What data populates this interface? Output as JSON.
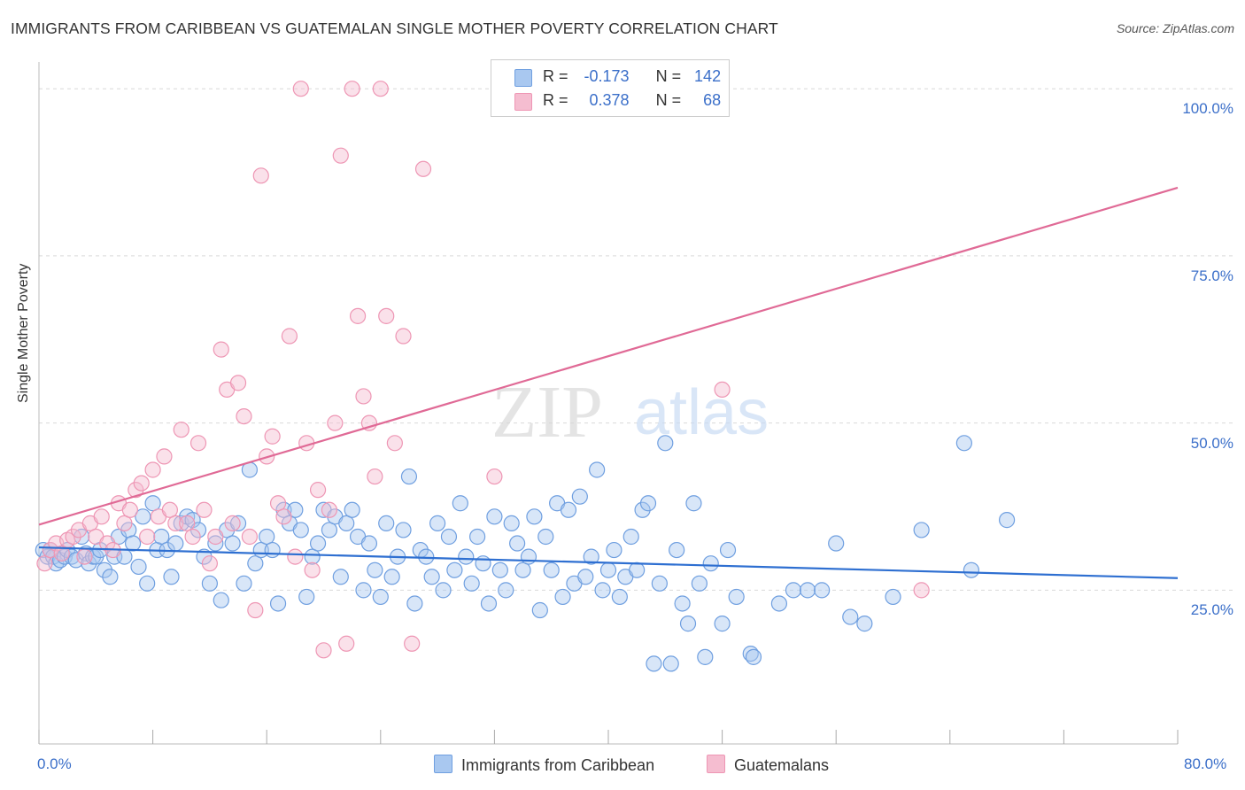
{
  "title": "IMMIGRANTS FROM CARIBBEAN VS GUATEMALAN SINGLE MOTHER POVERTY CORRELATION CHART",
  "source": "Source: ZipAtlas.com",
  "watermark": {
    "zip": "ZIP",
    "atlas": "atlas"
  },
  "legend": {
    "r_label": "R =",
    "n_label": "N =",
    "rows": [
      {
        "r": "-0.173",
        "n": "142"
      },
      {
        "r": "0.378",
        "n": "68"
      }
    ]
  },
  "colors": {
    "blue_fill": "#a9c8f0",
    "blue_stroke": "#6f9fe0",
    "blue_line": "#2e6fd1",
    "pink_fill": "#f5bdd0",
    "pink_stroke": "#ee96b4",
    "pink_line": "#e06a96",
    "tick_text": "#3b6fc9",
    "grid": "#d9d9d9"
  },
  "chart_data": {
    "type": "scatter",
    "ylabel": "Single Mother Poverty",
    "xlim": [
      0,
      80
    ],
    "ylim": [
      2,
      104
    ],
    "x_tick_labels": [
      "0.0%",
      "80.0%"
    ],
    "y_ticks": [
      {
        "value": 25,
        "label": "25.0%"
      },
      {
        "value": 50,
        "label": "50.0%"
      },
      {
        "value": 75,
        "label": "75.0%"
      },
      {
        "value": 100,
        "label": "100.0%"
      }
    ],
    "grid": "horizontal dashed",
    "series": [
      {
        "name": "Immigrants from Caribbean",
        "color": "blue",
        "trend": {
          "x0": 0,
          "y0": 31.4,
          "x1": 80,
          "y1": 26.8
        },
        "points": [
          [
            0.3,
            31
          ],
          [
            0.6,
            30
          ],
          [
            0.8,
            31
          ],
          [
            1,
            30
          ],
          [
            1.2,
            29
          ],
          [
            1.5,
            29.5
          ],
          [
            1.8,
            30
          ],
          [
            2,
            31
          ],
          [
            2.3,
            30
          ],
          [
            2.6,
            29.5
          ],
          [
            3,
            33
          ],
          [
            3.3,
            30.5
          ],
          [
            3.5,
            29
          ],
          [
            3.8,
            30
          ],
          [
            4,
            30
          ],
          [
            4.3,
            31
          ],
          [
            4.6,
            28
          ],
          [
            5,
            27
          ],
          [
            5.3,
            30
          ],
          [
            5.6,
            33
          ],
          [
            6,
            30
          ],
          [
            6.3,
            34
          ],
          [
            6.6,
            32
          ],
          [
            7,
            28.5
          ],
          [
            7.3,
            36
          ],
          [
            7.6,
            26
          ],
          [
            8,
            38
          ],
          [
            8.3,
            31
          ],
          [
            8.6,
            33
          ],
          [
            9,
            31
          ],
          [
            9.3,
            27
          ],
          [
            9.6,
            32
          ],
          [
            10,
            35
          ],
          [
            10.4,
            36
          ],
          [
            10.8,
            35.5
          ],
          [
            11.2,
            34
          ],
          [
            11.6,
            30
          ],
          [
            12,
            26
          ],
          [
            12.4,
            32
          ],
          [
            12.8,
            23.5
          ],
          [
            13.2,
            34
          ],
          [
            13.6,
            32
          ],
          [
            14,
            35
          ],
          [
            14.4,
            26
          ],
          [
            14.8,
            43
          ],
          [
            15.2,
            29
          ],
          [
            15.6,
            31
          ],
          [
            16,
            33
          ],
          [
            16.4,
            31
          ],
          [
            16.8,
            23
          ],
          [
            17.2,
            37
          ],
          [
            17.6,
            35
          ],
          [
            18,
            37
          ],
          [
            18.4,
            34
          ],
          [
            18.8,
            24
          ],
          [
            19.2,
            30
          ],
          [
            19.6,
            32
          ],
          [
            20,
            37
          ],
          [
            20.4,
            34
          ],
          [
            20.8,
            36
          ],
          [
            21.2,
            27
          ],
          [
            21.6,
            35
          ],
          [
            22,
            37
          ],
          [
            22.4,
            33
          ],
          [
            22.8,
            25
          ],
          [
            23.2,
            32
          ],
          [
            23.6,
            28
          ],
          [
            24,
            24
          ],
          [
            24.4,
            35
          ],
          [
            24.8,
            27
          ],
          [
            25.2,
            30
          ],
          [
            25.6,
            34
          ],
          [
            26,
            42
          ],
          [
            26.4,
            23
          ],
          [
            26.8,
            31
          ],
          [
            27.2,
            30
          ],
          [
            27.6,
            27
          ],
          [
            28,
            35
          ],
          [
            28.4,
            25
          ],
          [
            28.8,
            33
          ],
          [
            29.2,
            28
          ],
          [
            29.6,
            38
          ],
          [
            30,
            30
          ],
          [
            30.4,
            26
          ],
          [
            30.8,
            33
          ],
          [
            31.2,
            29
          ],
          [
            31.6,
            23
          ],
          [
            32,
            36
          ],
          [
            32.4,
            28
          ],
          [
            32.8,
            25
          ],
          [
            33.2,
            35
          ],
          [
            33.6,
            32
          ],
          [
            34,
            28
          ],
          [
            34.4,
            30
          ],
          [
            34.8,
            36
          ],
          [
            35.2,
            22
          ],
          [
            35.6,
            33
          ],
          [
            36,
            28
          ],
          [
            36.4,
            38
          ],
          [
            36.8,
            24
          ],
          [
            37.2,
            37
          ],
          [
            37.6,
            26
          ],
          [
            38,
            39
          ],
          [
            38.4,
            27
          ],
          [
            38.8,
            30
          ],
          [
            39.2,
            43
          ],
          [
            39.6,
            25
          ],
          [
            40,
            28
          ],
          [
            40.4,
            31
          ],
          [
            40.8,
            24
          ],
          [
            41.2,
            27
          ],
          [
            41.6,
            33
          ],
          [
            42,
            28
          ],
          [
            42.4,
            37
          ],
          [
            42.8,
            38
          ],
          [
            43.2,
            14
          ],
          [
            43.6,
            26
          ],
          [
            44,
            47
          ],
          [
            44.4,
            14
          ],
          [
            44.8,
            31
          ],
          [
            45.2,
            23
          ],
          [
            45.6,
            20
          ],
          [
            46,
            38
          ],
          [
            46.4,
            26
          ],
          [
            46.8,
            15
          ],
          [
            47.2,
            29
          ],
          [
            48,
            20
          ],
          [
            48.4,
            31
          ],
          [
            49,
            24
          ],
          [
            50,
            15.5
          ],
          [
            50.2,
            15
          ],
          [
            52,
            23
          ],
          [
            53,
            25
          ],
          [
            54,
            25
          ],
          [
            55,
            25
          ],
          [
            56,
            32
          ],
          [
            57,
            21
          ],
          [
            58,
            20
          ],
          [
            60,
            24
          ],
          [
            62,
            34
          ],
          [
            65,
            47
          ],
          [
            65.5,
            28
          ],
          [
            68,
            35.5
          ]
        ]
      },
      {
        "name": "Guatemalans",
        "color": "pink",
        "trend": {
          "x0": 0,
          "y0": 34.8,
          "x1": 80,
          "y1": 85.2
        },
        "points": [
          [
            0.4,
            29
          ],
          [
            0.8,
            31
          ],
          [
            1.2,
            32
          ],
          [
            1.6,
            30.5
          ],
          [
            2,
            32.5
          ],
          [
            2.4,
            33
          ],
          [
            2.8,
            34
          ],
          [
            3.2,
            30
          ],
          [
            3.6,
            35
          ],
          [
            4,
            33
          ],
          [
            4.4,
            36
          ],
          [
            4.8,
            32
          ],
          [
            5.2,
            31
          ],
          [
            5.6,
            38
          ],
          [
            6,
            35
          ],
          [
            6.4,
            37
          ],
          [
            6.8,
            40
          ],
          [
            7.2,
            41
          ],
          [
            7.6,
            33
          ],
          [
            8,
            43
          ],
          [
            8.4,
            36
          ],
          [
            8.8,
            45
          ],
          [
            9.2,
            37
          ],
          [
            9.6,
            35
          ],
          [
            10,
            49
          ],
          [
            10.4,
            35
          ],
          [
            10.8,
            33
          ],
          [
            11.2,
            47
          ],
          [
            11.6,
            37
          ],
          [
            12,
            29
          ],
          [
            12.4,
            33
          ],
          [
            12.8,
            61
          ],
          [
            13.2,
            55
          ],
          [
            13.6,
            35
          ],
          [
            14,
            56
          ],
          [
            14.4,
            51
          ],
          [
            14.8,
            33
          ],
          [
            15.2,
            22
          ],
          [
            15.6,
            87
          ],
          [
            16,
            45
          ],
          [
            16.4,
            48
          ],
          [
            16.8,
            38
          ],
          [
            17.2,
            36
          ],
          [
            17.6,
            63
          ],
          [
            18,
            30
          ],
          [
            18.4,
            100
          ],
          [
            18.8,
            47
          ],
          [
            19.2,
            28
          ],
          [
            19.6,
            40
          ],
          [
            20,
            16
          ],
          [
            20.4,
            37
          ],
          [
            20.8,
            50
          ],
          [
            21.2,
            90
          ],
          [
            21.6,
            17
          ],
          [
            22,
            100
          ],
          [
            22.4,
            66
          ],
          [
            22.8,
            54
          ],
          [
            23.2,
            50
          ],
          [
            23.6,
            42
          ],
          [
            24,
            100
          ],
          [
            24.4,
            66
          ],
          [
            25,
            47
          ],
          [
            25.6,
            63
          ],
          [
            26.2,
            17
          ],
          [
            27,
            88
          ],
          [
            32,
            42
          ],
          [
            48,
            55
          ],
          [
            62,
            25
          ]
        ]
      }
    ]
  }
}
